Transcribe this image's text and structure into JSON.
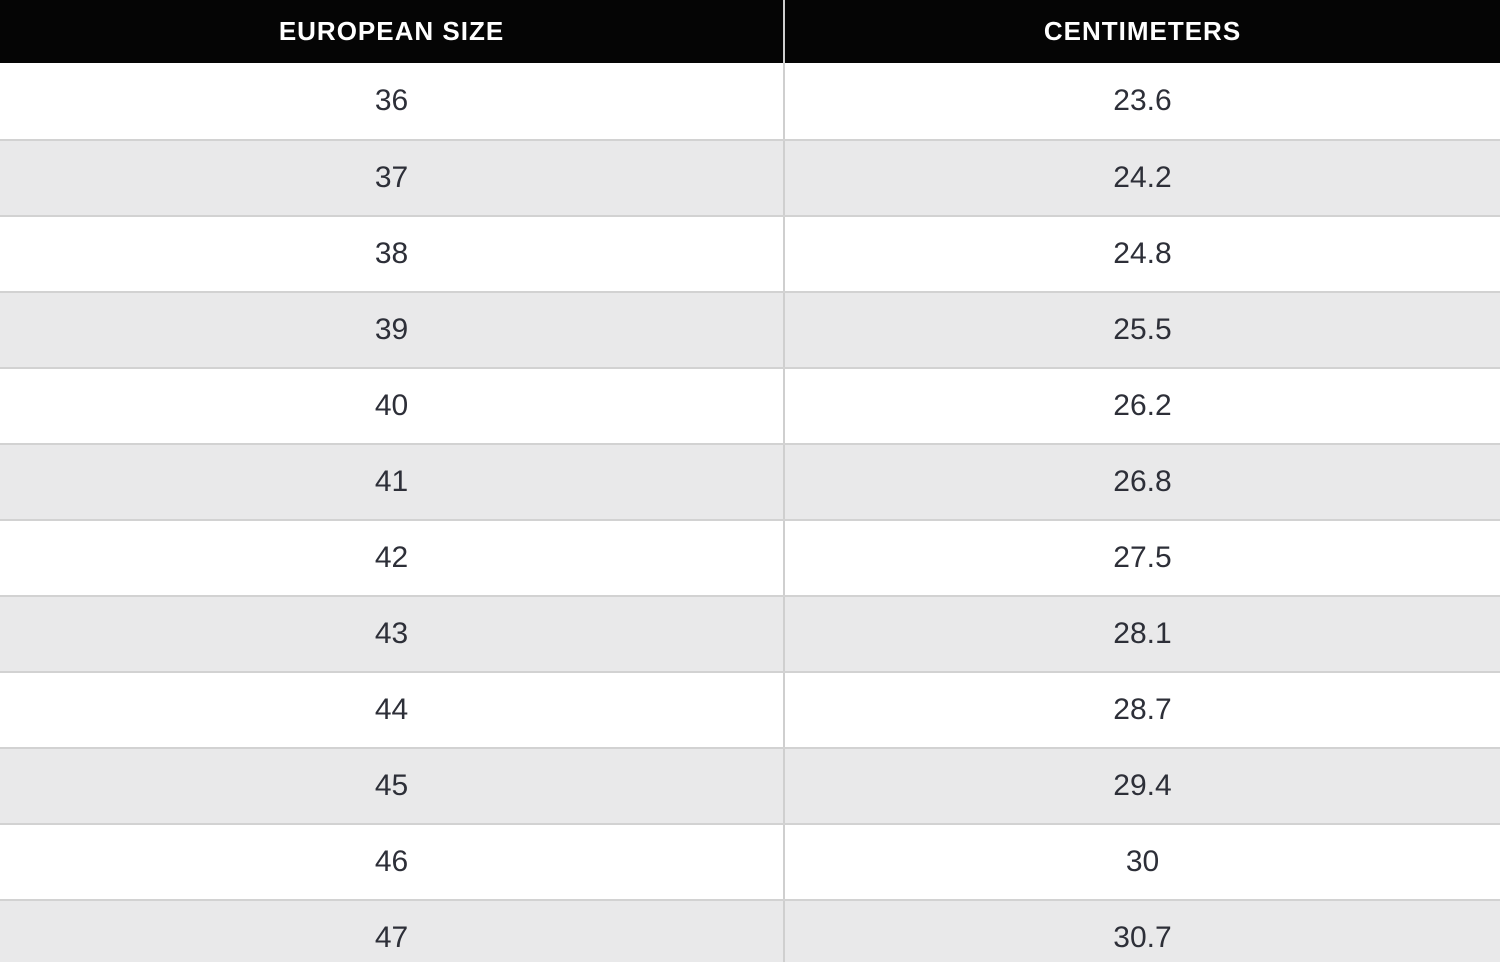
{
  "table": {
    "columns": [
      {
        "label": "EUROPEAN SIZE"
      },
      {
        "label": "CENTIMETERS"
      }
    ],
    "rows": [
      {
        "european_size": "36",
        "centimeters": "23.6"
      },
      {
        "european_size": "37",
        "centimeters": "24.2"
      },
      {
        "european_size": "38",
        "centimeters": "24.8"
      },
      {
        "european_size": "39",
        "centimeters": "25.5"
      },
      {
        "european_size": "40",
        "centimeters": "26.2"
      },
      {
        "european_size": "41",
        "centimeters": "26.8"
      },
      {
        "european_size": "42",
        "centimeters": "27.5"
      },
      {
        "european_size": "43",
        "centimeters": "28.1"
      },
      {
        "european_size": "44",
        "centimeters": "28.7"
      },
      {
        "european_size": "45",
        "centimeters": "29.4"
      },
      {
        "european_size": "46",
        "centimeters": "30"
      },
      {
        "european_size": "47",
        "centimeters": "30.7"
      }
    ]
  },
  "colors": {
    "header_bg": "#050505",
    "header_text": "#ffffff",
    "row_bg": "#ffffff",
    "row_alt_bg": "#e9e9ea",
    "row_border": "#d2d2d2",
    "column_divider": "#cfcfcf",
    "body_text": "#2d2f38"
  }
}
